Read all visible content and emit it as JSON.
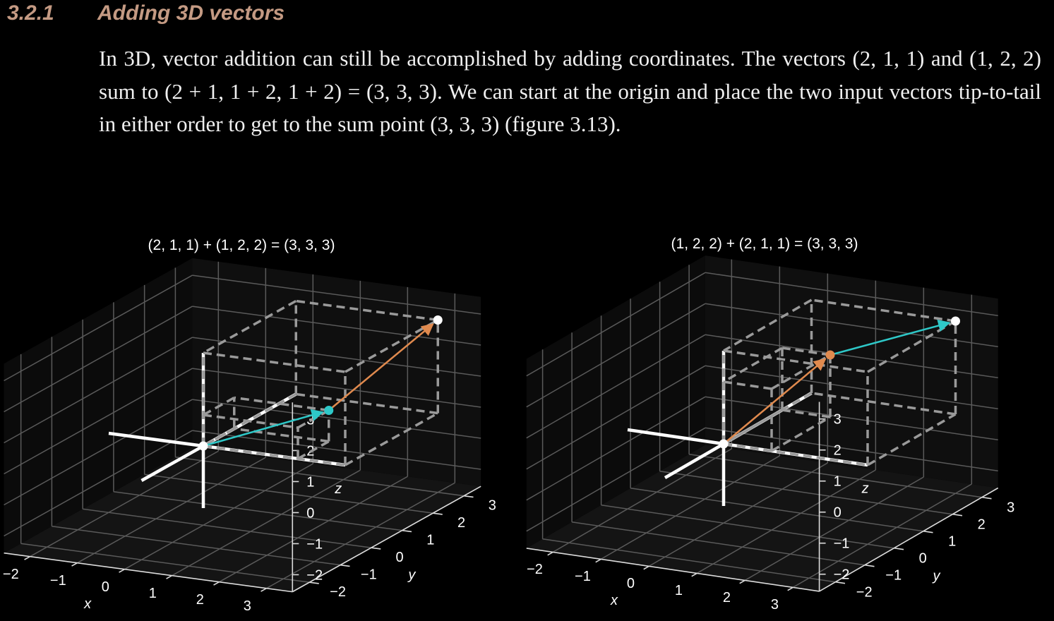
{
  "section": {
    "number": "3.2.1",
    "title": "Adding 3D vectors",
    "paragraph": "In 3D, vector addition can still be accomplished by adding coordinates. The vectors (2, 1, 1) and (1, 2, 2) sum to (2 + 1, 1 + 2, 1 + 2) = (3, 3, 3). We can start at the origin and place the two input vectors tip-to-tail in either order to get to the sum point (3, 3, 3) (figure 3.13)."
  },
  "colors": {
    "background": "#000000",
    "heading": "#c49a83",
    "vector_teal": "#2ec8c8",
    "vector_orange": "#e08a4e",
    "dashed": "#9a9a9a"
  },
  "chart_data": [
    {
      "type": "3d-vector",
      "title": "(2, 1, 1) + (1, 2, 2) = (3, 3, 3)",
      "xlabel": "x",
      "ylabel": "y",
      "zlabel": "z",
      "xticks": [
        "−2",
        "−1",
        "0",
        "1",
        "2",
        "3"
      ],
      "yticks": [
        "−2",
        "−1",
        "0",
        "1",
        "2",
        "3"
      ],
      "zticks": [
        "−2",
        "−1",
        "0",
        "1",
        "2",
        "3"
      ],
      "xlim": [
        -2,
        3
      ],
      "ylim": [
        -2,
        3
      ],
      "zlim": [
        -2,
        3
      ],
      "vectors": [
        {
          "from": [
            0,
            0,
            0
          ],
          "to": [
            2,
            1,
            1
          ],
          "color": "teal"
        },
        {
          "from": [
            2,
            1,
            1
          ],
          "to": [
            3,
            3,
            3
          ],
          "color": "orange"
        }
      ],
      "points": [
        [
          0,
          0,
          0
        ],
        [
          2,
          1,
          1
        ],
        [
          3,
          3,
          3
        ]
      ],
      "boxes": [
        [
          2,
          1,
          1
        ],
        [
          3,
          3,
          3
        ]
      ]
    },
    {
      "type": "3d-vector",
      "title": "(1, 2, 2) + (2, 1, 1) = (3, 3, 3)",
      "xlabel": "x",
      "ylabel": "y",
      "zlabel": "z",
      "xticks": [
        "−2",
        "−1",
        "0",
        "1",
        "2",
        "3"
      ],
      "yticks": [
        "−2",
        "−1",
        "0",
        "1",
        "2",
        "3"
      ],
      "zticks": [
        "−2",
        "−1",
        "0",
        "1",
        "2",
        "3"
      ],
      "xlim": [
        -2,
        3
      ],
      "ylim": [
        -2,
        3
      ],
      "zlim": [
        -2,
        3
      ],
      "vectors": [
        {
          "from": [
            0,
            0,
            0
          ],
          "to": [
            1,
            2,
            2
          ],
          "color": "orange"
        },
        {
          "from": [
            1,
            2,
            2
          ],
          "to": [
            3,
            3,
            3
          ],
          "color": "teal"
        }
      ],
      "points": [
        [
          0,
          0,
          0
        ],
        [
          1,
          2,
          2
        ],
        [
          3,
          3,
          3
        ]
      ],
      "boxes": [
        [
          1,
          2,
          2
        ],
        [
          3,
          3,
          3
        ]
      ]
    }
  ]
}
